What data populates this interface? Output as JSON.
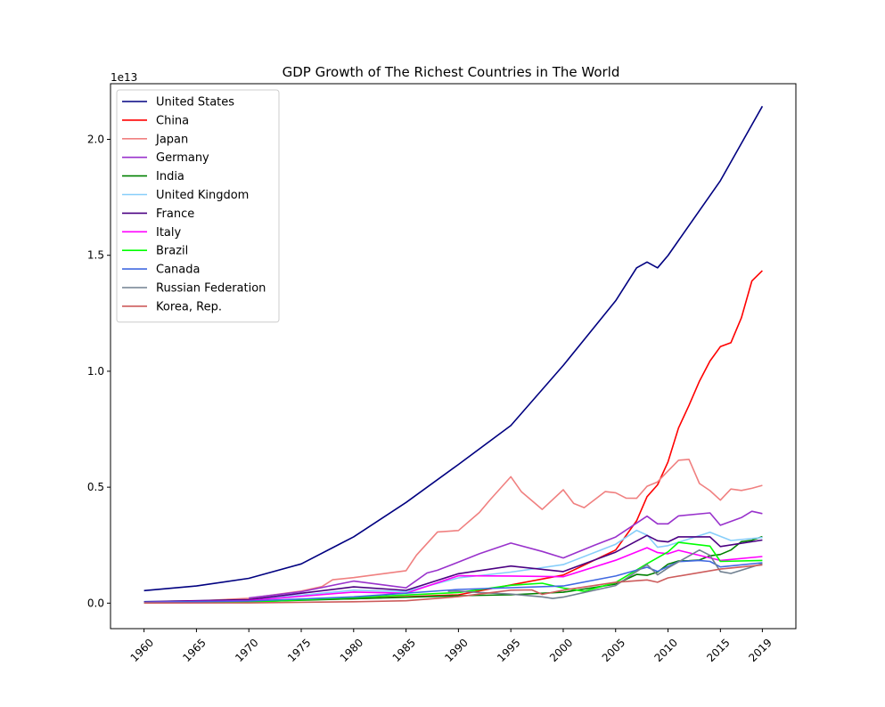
{
  "chart_data": {
    "type": "line",
    "title": "GDP Growth of The Richest Countries in The World",
    "xlabel": "",
    "ylabel": "",
    "y_offset_label": "1e13",
    "x_ticks": [
      1960,
      1965,
      1970,
      1975,
      1980,
      1985,
      1990,
      1995,
      2000,
      2005,
      2010,
      2015,
      2019
    ],
    "y_ticks": [
      0.0,
      0.5,
      1.0,
      1.5,
      2.0
    ],
    "y_tick_labels": [
      "0.0",
      "0.5",
      "1.0",
      "1.5",
      "2.0"
    ],
    "xlim": [
      1956.8,
      2022.2
    ],
    "ylim": [
      -0.11,
      2.24
    ],
    "y_unit_scale": 10000000000000.0,
    "grid": false,
    "legend_position": "top-left",
    "series": [
      {
        "name": "United States",
        "color": "#000080",
        "years": [
          1960,
          1965,
          1970,
          1975,
          1980,
          1985,
          1990,
          1995,
          2000,
          2005,
          2007,
          2008,
          2009,
          2010,
          2015,
          2019
        ],
        "values": [
          0.054,
          0.074,
          0.107,
          0.169,
          0.286,
          0.434,
          0.598,
          0.766,
          1.025,
          1.304,
          1.446,
          1.471,
          1.446,
          1.499,
          1.822,
          2.143
        ]
      },
      {
        "name": "China",
        "color": "#ff0000",
        "years": [
          1960,
          1970,
          1980,
          1990,
          2000,
          2005,
          2007,
          2008,
          2009,
          2010,
          2011,
          2012,
          2013,
          2014,
          2015,
          2016,
          2017,
          2018,
          2019
        ],
        "values": [
          0.006,
          0.009,
          0.019,
          0.036,
          0.121,
          0.229,
          0.355,
          0.459,
          0.51,
          0.609,
          0.755,
          0.853,
          0.957,
          1.044,
          1.106,
          1.123,
          1.231,
          1.389,
          1.434
        ]
      },
      {
        "name": "Japan",
        "color": "#f08080",
        "years": [
          1960,
          1965,
          1970,
          1975,
          1977,
          1978,
          1980,
          1985,
          1986,
          1988,
          1990,
          1992,
          1993,
          1995,
          1996,
          1998,
          2000,
          2001,
          2002,
          2004,
          2005,
          2006,
          2007,
          2008,
          2009,
          2010,
          2011,
          2012,
          2013,
          2014,
          2015,
          2016,
          2017,
          2018,
          2019
        ],
        "values": [
          0.004,
          0.009,
          0.021,
          0.052,
          0.072,
          0.101,
          0.11,
          0.14,
          0.207,
          0.307,
          0.313,
          0.391,
          0.445,
          0.545,
          0.481,
          0.404,
          0.489,
          0.43,
          0.412,
          0.481,
          0.476,
          0.453,
          0.452,
          0.504,
          0.523,
          0.57,
          0.616,
          0.62,
          0.516,
          0.485,
          0.444,
          0.492,
          0.486,
          0.495,
          0.508
        ]
      },
      {
        "name": "Germany",
        "color": "#9932cc",
        "years": [
          1970,
          1975,
          1980,
          1985,
          1987,
          1988,
          1990,
          1992,
          1995,
          1998,
          2000,
          2003,
          2005,
          2008,
          2009,
          2010,
          2011,
          2014,
          2015,
          2017,
          2018,
          2019
        ],
        "values": [
          0.022,
          0.049,
          0.095,
          0.066,
          0.13,
          0.142,
          0.177,
          0.213,
          0.259,
          0.223,
          0.195,
          0.25,
          0.285,
          0.375,
          0.342,
          0.342,
          0.376,
          0.389,
          0.336,
          0.369,
          0.396,
          0.386
        ]
      },
      {
        "name": "India",
        "color": "#008000",
        "years": [
          1960,
          1970,
          1980,
          1990,
          1995,
          2000,
          2005,
          2007,
          2008,
          2009,
          2010,
          2011,
          2012,
          2013,
          2014,
          2015,
          2016,
          2017,
          2018,
          2019
        ],
        "values": [
          0.004,
          0.006,
          0.019,
          0.032,
          0.036,
          0.047,
          0.082,
          0.124,
          0.12,
          0.134,
          0.168,
          0.182,
          0.183,
          0.186,
          0.204,
          0.21,
          0.229,
          0.265,
          0.271,
          0.287
        ]
      },
      {
        "name": "United Kingdom",
        "color": "#87cefa",
        "years": [
          1960,
          1970,
          1980,
          1985,
          1990,
          1995,
          2000,
          2005,
          2007,
          2008,
          2009,
          2010,
          2014,
          2016,
          2019
        ],
        "values": [
          0.007,
          0.013,
          0.056,
          0.05,
          0.109,
          0.134,
          0.166,
          0.254,
          0.314,
          0.293,
          0.241,
          0.248,
          0.306,
          0.27,
          0.283
        ]
      },
      {
        "name": "France",
        "color": "#4b0082",
        "years": [
          1960,
          1970,
          1980,
          1985,
          1990,
          1995,
          2000,
          2005,
          2008,
          2009,
          2010,
          2011,
          2014,
          2015,
          2019
        ],
        "values": [
          0.006,
          0.015,
          0.07,
          0.055,
          0.127,
          0.16,
          0.136,
          0.22,
          0.292,
          0.269,
          0.264,
          0.286,
          0.286,
          0.244,
          0.272
        ]
      },
      {
        "name": "Italy",
        "color": "#ff00ff",
        "years": [
          1960,
          1970,
          1980,
          1985,
          1990,
          1995,
          2000,
          2005,
          2008,
          2009,
          2010,
          2011,
          2015,
          2019
        ],
        "values": [
          0.004,
          0.011,
          0.048,
          0.043,
          0.118,
          0.117,
          0.114,
          0.185,
          0.239,
          0.218,
          0.213,
          0.228,
          0.184,
          0.201
        ]
      },
      {
        "name": "Brazil",
        "color": "#00ff00",
        "years": [
          1960,
          1970,
          1980,
          1990,
          1995,
          1998,
          2000,
          2002,
          2005,
          2008,
          2010,
          2011,
          2014,
          2015,
          2019
        ],
        "values": [
          0.002,
          0.004,
          0.024,
          0.046,
          0.077,
          0.086,
          0.065,
          0.051,
          0.089,
          0.17,
          0.221,
          0.262,
          0.246,
          0.18,
          0.184
        ]
      },
      {
        "name": "Canada",
        "color": "#4169e1",
        "years": [
          1960,
          1970,
          1980,
          1990,
          2000,
          2005,
          2008,
          2009,
          2011,
          2013,
          2014,
          2015,
          2019
        ],
        "values": [
          0.004,
          0.009,
          0.027,
          0.059,
          0.074,
          0.117,
          0.155,
          0.137,
          0.179,
          0.184,
          0.18,
          0.156,
          0.174
        ]
      },
      {
        "name": "Russian Federation",
        "color": "#708090",
        "years": [
          1989,
          1990,
          1992,
          1995,
          1998,
          1999,
          2000,
          2005,
          2008,
          2009,
          2010,
          2013,
          2014,
          2015,
          2016,
          2019
        ],
        "values": [
          0.051,
          0.052,
          0.046,
          0.039,
          0.027,
          0.02,
          0.026,
          0.076,
          0.166,
          0.122,
          0.152,
          0.229,
          0.206,
          0.136,
          0.128,
          0.17
        ]
      },
      {
        "name": "Korea, Rep.",
        "color": "#cd5c5c",
        "years": [
          1960,
          1970,
          1980,
          1985,
          1990,
          1995,
          1997,
          1998,
          2000,
          2005,
          2008,
          2009,
          2010,
          2015,
          2019
        ],
        "values": [
          0.0004,
          0.001,
          0.006,
          0.01,
          0.028,
          0.056,
          0.057,
          0.038,
          0.056,
          0.09,
          0.1,
          0.09,
          0.109,
          0.147,
          0.165
        ]
      }
    ]
  }
}
